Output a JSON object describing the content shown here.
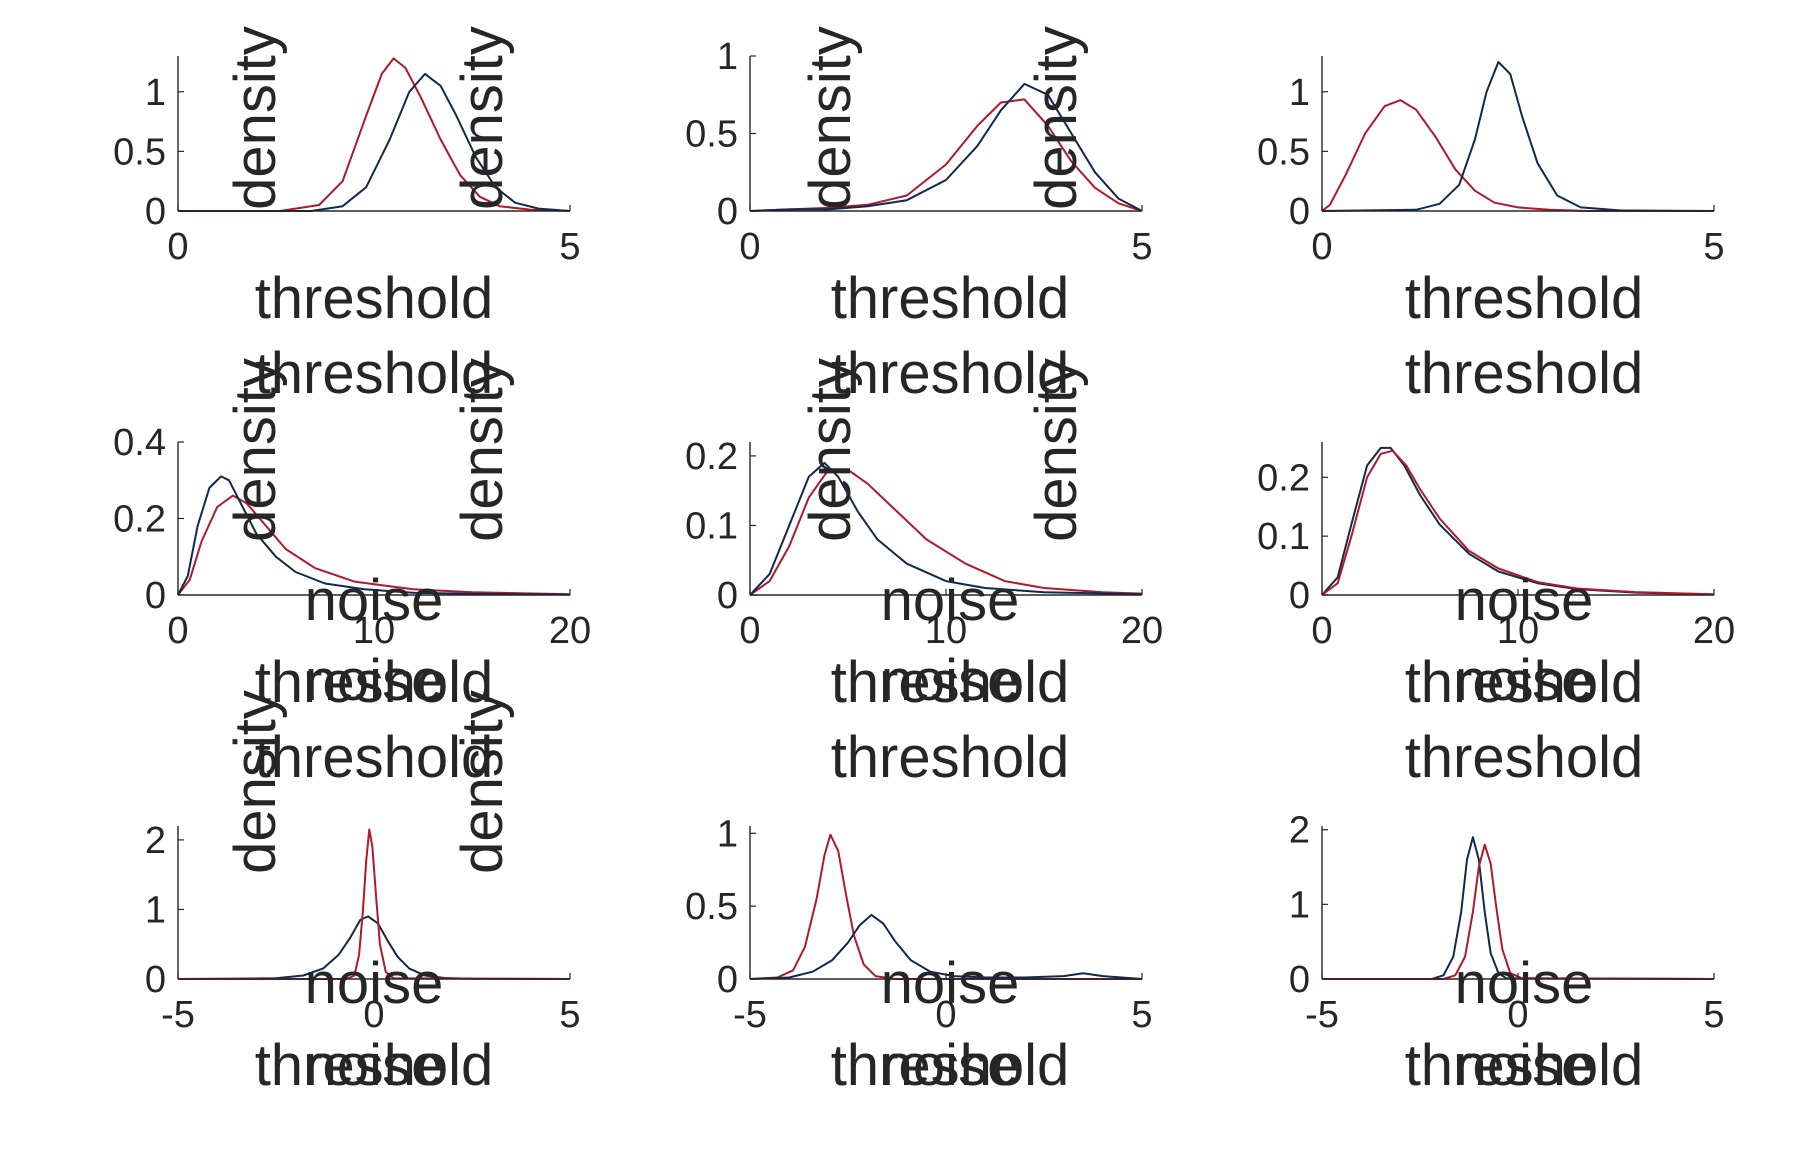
{
  "colors": {
    "series_red": "#b2182b",
    "series_navy": "#0f2a4f",
    "axis": "#262626",
    "text": "#262626"
  },
  "chart_data": [
    {
      "type": "line",
      "row": 1,
      "col": 1,
      "xlim": [
        0,
        5
      ],
      "ylim": [
        0,
        1.3
      ],
      "xticks": [
        0,
        5
      ],
      "yticks": [
        0,
        0.5,
        1
      ],
      "xticklabels": [
        "0",
        "5"
      ],
      "yticklabels": [
        "0",
        "0.5",
        "1"
      ],
      "series": [
        {
          "color": "#b2182b",
          "x": [
            0,
            1.3,
            1.8,
            2.1,
            2.4,
            2.6,
            2.75,
            2.9,
            3.1,
            3.35,
            3.6,
            3.85,
            4.1,
            4.5,
            5
          ],
          "y": [
            0,
            0,
            0.05,
            0.25,
            0.8,
            1.15,
            1.28,
            1.2,
            0.95,
            0.6,
            0.3,
            0.12,
            0.04,
            0.01,
            0
          ]
        },
        {
          "color": "#0f2a4f",
          "x": [
            0,
            1.7,
            2.1,
            2.4,
            2.7,
            2.95,
            3.15,
            3.35,
            3.55,
            3.8,
            4.05,
            4.3,
            4.6,
            5
          ],
          "y": [
            0,
            0,
            0.04,
            0.2,
            0.6,
            1.0,
            1.15,
            1.05,
            0.8,
            0.45,
            0.2,
            0.07,
            0.02,
            0
          ]
        }
      ]
    },
    {
      "type": "line",
      "row": 1,
      "col": 2,
      "xlim": [
        0,
        5
      ],
      "ylim": [
        0,
        1
      ],
      "xticks": [
        0,
        5
      ],
      "yticks": [
        0,
        0.5,
        1
      ],
      "xticklabels": [
        "0",
        "5"
      ],
      "yticklabels": [
        "0",
        "0.5",
        "1"
      ],
      "series": [
        {
          "color": "#b2182b",
          "x": [
            0,
            0.5,
            1.0,
            1.5,
            2.0,
            2.5,
            2.9,
            3.2,
            3.5,
            3.8,
            4.1,
            4.4,
            4.7,
            5
          ],
          "y": [
            0,
            0.01,
            0.02,
            0.04,
            0.1,
            0.3,
            0.55,
            0.7,
            0.72,
            0.55,
            0.32,
            0.15,
            0.05,
            0
          ]
        },
        {
          "color": "#0f2a4f",
          "x": [
            0,
            0.5,
            1.0,
            1.5,
            2.0,
            2.5,
            2.9,
            3.2,
            3.5,
            3.8,
            4.1,
            4.4,
            4.7,
            5
          ],
          "y": [
            0,
            0.01,
            0.01,
            0.03,
            0.07,
            0.2,
            0.42,
            0.65,
            0.82,
            0.75,
            0.5,
            0.25,
            0.08,
            0
          ]
        }
      ]
    },
    {
      "type": "line",
      "row": 1,
      "col": 3,
      "xlim": [
        0,
        5
      ],
      "ylim": [
        0,
        1.3
      ],
      "xticks": [
        0,
        5
      ],
      "yticks": [
        0,
        0.5,
        1
      ],
      "xticklabels": [
        "0",
        "5"
      ],
      "yticklabels": [
        "0",
        "0.5",
        "1"
      ],
      "series": [
        {
          "color": "#b2182b",
          "x": [
            0,
            0.1,
            0.3,
            0.55,
            0.8,
            1.0,
            1.2,
            1.45,
            1.7,
            1.95,
            2.2,
            2.5,
            2.9,
            3.4,
            4,
            5
          ],
          "y": [
            0,
            0.05,
            0.3,
            0.65,
            0.88,
            0.93,
            0.85,
            0.62,
            0.35,
            0.17,
            0.07,
            0.03,
            0.01,
            0,
            0,
            0
          ]
        },
        {
          "color": "#0f2a4f",
          "x": [
            0,
            1.2,
            1.5,
            1.75,
            1.95,
            2.1,
            2.25,
            2.4,
            2.55,
            2.75,
            3.0,
            3.3,
            3.8,
            5
          ],
          "y": [
            0,
            0.01,
            0.06,
            0.22,
            0.6,
            1.0,
            1.25,
            1.15,
            0.8,
            0.4,
            0.13,
            0.03,
            0.005,
            0
          ]
        }
      ]
    },
    {
      "type": "line",
      "row": 2,
      "col": 1,
      "xlim": [
        0,
        20
      ],
      "ylim": [
        0,
        0.4
      ],
      "xticks": [
        0,
        10,
        20
      ],
      "yticks": [
        0,
        0.2,
        0.4
      ],
      "xticklabels": [
        "0",
        "10",
        "20"
      ],
      "yticklabels": [
        "0",
        "0.2",
        "0.4"
      ],
      "series": [
        {
          "color": "#b2182b",
          "x": [
            0,
            0.6,
            1.2,
            2.0,
            2.8,
            3.5,
            4.5,
            5.5,
            7.0,
            9.0,
            12,
            15,
            20
          ],
          "y": [
            0,
            0.04,
            0.14,
            0.23,
            0.26,
            0.24,
            0.18,
            0.12,
            0.07,
            0.035,
            0.015,
            0.007,
            0.002
          ]
        },
        {
          "color": "#0f2a4f",
          "x": [
            0,
            0.5,
            1.0,
            1.6,
            2.2,
            2.6,
            3.2,
            4.0,
            5.0,
            6.0,
            7.5,
            9.5,
            12,
            15,
            20
          ],
          "y": [
            0,
            0.05,
            0.18,
            0.28,
            0.31,
            0.3,
            0.24,
            0.16,
            0.1,
            0.06,
            0.03,
            0.015,
            0.006,
            0.003,
            0.001
          ]
        }
      ]
    },
    {
      "type": "line",
      "row": 2,
      "col": 2,
      "xlim": [
        0,
        20
      ],
      "ylim": [
        0,
        0.22
      ],
      "xticks": [
        0,
        10,
        20
      ],
      "yticks": [
        0,
        0.1,
        0.2
      ],
      "xticklabels": [
        "0",
        "10",
        "20"
      ],
      "yticklabels": [
        "0",
        "0.1",
        "0.2"
      ],
      "series": [
        {
          "color": "#b2182b",
          "x": [
            0,
            1.0,
            2.0,
            3.0,
            4.0,
            5.0,
            6.0,
            7.5,
            9.0,
            11,
            13,
            15,
            18,
            20
          ],
          "y": [
            0,
            0.02,
            0.07,
            0.14,
            0.18,
            0.18,
            0.16,
            0.12,
            0.08,
            0.045,
            0.02,
            0.01,
            0.004,
            0.002
          ]
        },
        {
          "color": "#0f2a4f",
          "x": [
            0,
            1.0,
            2.0,
            3.0,
            3.8,
            4.5,
            5.5,
            6.5,
            8.0,
            10,
            12,
            15,
            20
          ],
          "y": [
            0,
            0.03,
            0.1,
            0.17,
            0.19,
            0.17,
            0.12,
            0.08,
            0.045,
            0.02,
            0.01,
            0.004,
            0.001
          ]
        }
      ]
    },
    {
      "type": "line",
      "row": 2,
      "col": 3,
      "xlim": [
        0,
        20
      ],
      "ylim": [
        0,
        0.26
      ],
      "xticks": [
        0,
        10,
        20
      ],
      "yticks": [
        0,
        0.1,
        0.2
      ],
      "xticklabels": [
        "0",
        "10",
        "20"
      ],
      "yticklabels": [
        "0",
        "0.1",
        "0.2"
      ],
      "series": [
        {
          "color": "#0f2a4f",
          "x": [
            0,
            0.8,
            1.5,
            2.3,
            3.0,
            3.5,
            4.2,
            5.0,
            6.0,
            7.5,
            9.0,
            11,
            13,
            16,
            20
          ],
          "y": [
            0,
            0.03,
            0.12,
            0.22,
            0.25,
            0.25,
            0.22,
            0.17,
            0.12,
            0.07,
            0.04,
            0.02,
            0.01,
            0.004,
            0.001
          ]
        },
        {
          "color": "#b2182b",
          "x": [
            0,
            0.8,
            1.5,
            2.3,
            3.0,
            3.6,
            4.3,
            5.0,
            6.0,
            7.5,
            9.0,
            11,
            13,
            16,
            20
          ],
          "y": [
            0,
            0.02,
            0.1,
            0.2,
            0.24,
            0.245,
            0.22,
            0.18,
            0.13,
            0.075,
            0.045,
            0.022,
            0.011,
            0.005,
            0.001
          ]
        }
      ]
    },
    {
      "type": "line",
      "row": 3,
      "col": 1,
      "xlim": [
        -5,
        5
      ],
      "ylim": [
        0,
        2.2
      ],
      "xticks": [
        -5,
        0,
        5
      ],
      "yticks": [
        0,
        1,
        2
      ],
      "xticklabels": [
        "-5",
        "0",
        "5"
      ],
      "yticklabels": [
        "0",
        "1",
        "2"
      ],
      "series": [
        {
          "color": "#0f2a4f",
          "x": [
            -5,
            -2.5,
            -1.8,
            -1.3,
            -0.9,
            -0.6,
            -0.35,
            -0.15,
            0.1,
            0.35,
            0.6,
            0.9,
            1.3,
            1.8,
            2.5,
            5
          ],
          "y": [
            0,
            0.01,
            0.05,
            0.15,
            0.35,
            0.6,
            0.85,
            0.9,
            0.8,
            0.55,
            0.32,
            0.15,
            0.05,
            0.015,
            0.003,
            0
          ]
        },
        {
          "color": "#b2182b",
          "x": [
            -5,
            -0.7,
            -0.5,
            -0.38,
            -0.28,
            -0.2,
            -0.12,
            -0.04,
            0.05,
            0.15,
            0.3,
            0.5,
            5
          ],
          "y": [
            0,
            0,
            0.05,
            0.35,
            1.0,
            1.7,
            2.15,
            1.9,
            1.2,
            0.5,
            0.1,
            0.01,
            0
          ]
        }
      ]
    },
    {
      "type": "line",
      "row": 3,
      "col": 2,
      "xlim": [
        -5,
        5
      ],
      "ylim": [
        0,
        1.05
      ],
      "xticks": [
        -5,
        0,
        5
      ],
      "yticks": [
        0,
        0.5,
        1
      ],
      "xticklabels": [
        "-5",
        "0",
        "5"
      ],
      "yticklabels": [
        "0",
        "0.5",
        "1"
      ],
      "series": [
        {
          "color": "#b2182b",
          "x": [
            -5,
            -4.3,
            -3.9,
            -3.6,
            -3.3,
            -3.1,
            -2.95,
            -2.75,
            -2.55,
            -2.35,
            -2.1,
            -1.8,
            -1.3,
            5
          ],
          "y": [
            0,
            0.01,
            0.06,
            0.22,
            0.55,
            0.85,
            0.99,
            0.88,
            0.58,
            0.3,
            0.1,
            0.02,
            0,
            0
          ]
        },
        {
          "color": "#0f2a4f",
          "x": [
            -5,
            -4.0,
            -3.4,
            -2.9,
            -2.5,
            -2.2,
            -1.9,
            -1.6,
            -1.3,
            -0.9,
            -0.4,
            0.2,
            1.0,
            2.0,
            3.0,
            3.5,
            4.0,
            5
          ],
          "y": [
            0,
            0.01,
            0.05,
            0.13,
            0.25,
            0.37,
            0.44,
            0.38,
            0.26,
            0.13,
            0.05,
            0.02,
            0.01,
            0.01,
            0.02,
            0.04,
            0.02,
            0
          ]
        }
      ]
    },
    {
      "type": "line",
      "row": 3,
      "col": 3,
      "xlim": [
        -5,
        5
      ],
      "ylim": [
        0,
        2.05
      ],
      "xticks": [
        -5,
        0,
        5
      ],
      "yticks": [
        0,
        1,
        2
      ],
      "xticklabels": [
        "-5",
        "0",
        "5"
      ],
      "yticklabels": [
        "0",
        "1",
        "2"
      ],
      "series": [
        {
          "color": "#0f2a4f",
          "x": [
            -5,
            -2.2,
            -1.9,
            -1.65,
            -1.45,
            -1.3,
            -1.15,
            -1.0,
            -0.85,
            -0.7,
            -0.5,
            -0.3,
            5
          ],
          "y": [
            0,
            0,
            0.05,
            0.3,
            0.9,
            1.6,
            1.9,
            1.6,
            0.9,
            0.35,
            0.08,
            0.01,
            0
          ]
        },
        {
          "color": "#b2182b",
          "x": [
            -5,
            -1.9,
            -1.6,
            -1.35,
            -1.15,
            -1.0,
            -0.85,
            -0.7,
            -0.55,
            -0.4,
            -0.2,
            0.1,
            5
          ],
          "y": [
            0,
            0,
            0.05,
            0.3,
            0.9,
            1.5,
            1.8,
            1.55,
            0.95,
            0.4,
            0.08,
            0.01,
            0
          ]
        }
      ]
    }
  ],
  "axis_labels": [
    {
      "text": "density",
      "kind": "ylabel"
    },
    {
      "text": "density",
      "kind": "ylabel"
    },
    {
      "text": "density",
      "kind": "ylabel"
    },
    {
      "text": "density",
      "kind": "ylabel"
    },
    {
      "text": "density",
      "kind": "ylabel"
    },
    {
      "text": "density",
      "kind": "ylabel"
    },
    {
      "text": "density",
      "kind": "ylabel"
    },
    {
      "text": "density",
      "kind": "ylabel"
    },
    {
      "text": "density",
      "kind": "ylabel"
    },
    {
      "text": "density",
      "kind": "ylabel"
    },
    {
      "text": "threshold",
      "kind": "xlabel"
    },
    {
      "text": "threshold",
      "kind": "xlabel"
    },
    {
      "text": "threshold",
      "kind": "xlabel"
    },
    {
      "text": "threshold",
      "kind": "xlabel"
    },
    {
      "text": "threshold",
      "kind": "xlabel"
    },
    {
      "text": "threshold",
      "kind": "xlabel"
    },
    {
      "text": "threshold",
      "kind": "xlabel"
    },
    {
      "text": "threshold",
      "kind": "xlabel"
    },
    {
      "text": "threshold",
      "kind": "xlabel"
    },
    {
      "text": "threshold",
      "kind": "xlabel"
    },
    {
      "text": "threshold",
      "kind": "xlabel"
    },
    {
      "text": "threshold",
      "kind": "xlabel"
    },
    {
      "text": "threshold",
      "kind": "xlabel"
    },
    {
      "text": "threshold",
      "kind": "xlabel"
    },
    {
      "text": "threshold",
      "kind": "xlabel"
    },
    {
      "text": "noise",
      "kind": "xlabel"
    },
    {
      "text": "noise",
      "kind": "xlabel"
    },
    {
      "text": "noise",
      "kind": "xlabel"
    },
    {
      "text": "noise",
      "kind": "xlabel"
    },
    {
      "text": "noise",
      "kind": "xlabel"
    },
    {
      "text": "noise",
      "kind": "xlabel"
    },
    {
      "text": "noise",
      "kind": "xlabel"
    },
    {
      "text": "noise",
      "kind": "xlabel"
    },
    {
      "text": "noise",
      "kind": "xlabel"
    },
    {
      "text": "noise",
      "kind": "xlabel"
    },
    {
      "text": "noise",
      "kind": "xlabel"
    },
    {
      "text": "noise",
      "kind": "xlabel"
    }
  ]
}
